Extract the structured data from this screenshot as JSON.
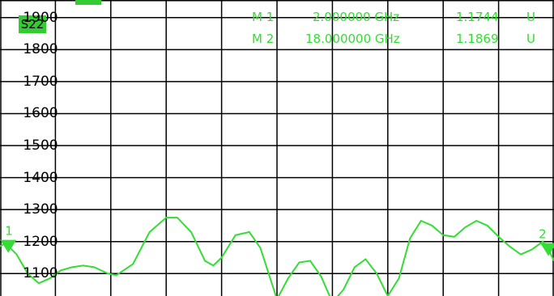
{
  "trace": {
    "name": "S22"
  },
  "markers": [
    {
      "id": "M 1",
      "freq": "2.000000 GHz",
      "value": "1.1744",
      "unit": "U",
      "flag": "1"
    },
    {
      "id": "M 2",
      "freq": "18.000000 GHz",
      "value": "1.1869",
      "unit": "U",
      "flag": "2"
    }
  ],
  "colors": {
    "trace": "#33dd33",
    "grid": "#000000",
    "background": "#ffffff",
    "label_bg": "#33cc33"
  },
  "chart_data": {
    "type": "line",
    "ylabel": "",
    "ylim": [
      1030,
      1955
    ],
    "xlim": [
      0,
      10
    ],
    "y_ticks": [
      {
        "value": 1900,
        "label": "1900"
      },
      {
        "value": 1800,
        "label": "1800"
      },
      {
        "value": 1700,
        "label": "1700"
      },
      {
        "value": 1600,
        "label": "1600"
      },
      {
        "value": 1500,
        "label": "1500"
      },
      {
        "value": 1400,
        "label": "1400"
      },
      {
        "value": 1300,
        "label": "1300"
      },
      {
        "value": 1200,
        "label": "1200"
      },
      {
        "value": 1100,
        "label": "1100"
      }
    ],
    "grid": true,
    "series": [
      {
        "x": [
          0,
          0.1,
          0.3,
          0.5,
          0.7,
          0.9,
          1.1,
          1.3,
          1.5,
          1.7,
          1.95,
          2.1,
          2.4,
          2.7,
          3.0,
          3.2,
          3.45,
          3.7,
          3.85,
          4.0,
          4.25,
          4.5,
          4.7,
          4.85,
          5.0,
          5.2,
          5.4,
          5.6,
          5.8,
          6.0,
          6.2,
          6.4,
          6.6,
          6.8,
          7.0,
          7.2,
          7.4,
          7.6,
          7.8,
          8.0,
          8.2,
          8.4,
          8.6,
          8.8,
          9.0,
          9.2,
          9.4,
          9.6,
          9.8,
          9.9,
          10.0
        ],
        "y": [
          1185,
          1195,
          1160,
          1100,
          1070,
          1085,
          1110,
          1120,
          1125,
          1120,
          1100,
          1095,
          1130,
          1230,
          1275,
          1275,
          1230,
          1140,
          1125,
          1150,
          1220,
          1230,
          1180,
          1100,
          1020,
          1085,
          1135,
          1140,
          1090,
          1010,
          1050,
          1120,
          1145,
          1100,
          1030,
          1085,
          1210,
          1265,
          1250,
          1220,
          1215,
          1245,
          1265,
          1250,
          1215,
          1185,
          1160,
          1175,
          1200,
          1175,
          1140
        ]
      }
    ]
  }
}
